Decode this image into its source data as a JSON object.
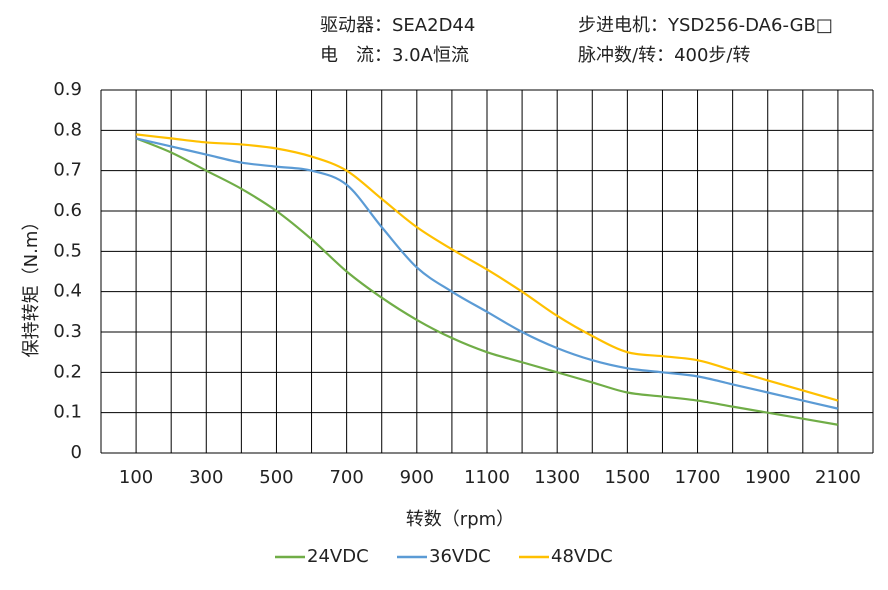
{
  "chart_data": {
    "type": "line",
    "header": [
      "驱动器：SEA2D44",
      "步进电机：YSD256-DA6-GB□",
      "电　流：3.0A恒流",
      "脉冲数/转：400步/转"
    ],
    "xlabel": "转数（rpm）",
    "ylabel": "保持转矩（N.m）",
    "x": [
      100,
      200,
      300,
      400,
      500,
      600,
      700,
      800,
      900,
      1000,
      1100,
      1200,
      1300,
      1400,
      1500,
      1600,
      1700,
      1800,
      1900,
      2000,
      2100
    ],
    "series": [
      {
        "name": "24VDC",
        "color": "#70ad47",
        "values": [
          0.78,
          0.745,
          0.7,
          0.655,
          0.6,
          0.53,
          0.45,
          0.385,
          0.33,
          0.285,
          0.25,
          0.225,
          0.2,
          0.175,
          0.15,
          0.14,
          0.13,
          0.115,
          0.1,
          0.085,
          0.07
        ]
      },
      {
        "name": "36VDC",
        "color": "#5b9bd5",
        "values": [
          0.78,
          0.76,
          0.74,
          0.72,
          0.71,
          0.7,
          0.665,
          0.56,
          0.46,
          0.4,
          0.35,
          0.3,
          0.26,
          0.23,
          0.21,
          0.2,
          0.19,
          0.17,
          0.15,
          0.13,
          0.11
        ]
      },
      {
        "name": "48VDC",
        "color": "#ffc000",
        "values": [
          0.79,
          0.78,
          0.77,
          0.765,
          0.755,
          0.735,
          0.7,
          0.63,
          0.56,
          0.505,
          0.455,
          0.4,
          0.34,
          0.29,
          0.25,
          0.24,
          0.23,
          0.205,
          0.18,
          0.155,
          0.13
        ]
      }
    ],
    "xlim": [
      0,
      2200
    ],
    "xticks": [
      100,
      300,
      500,
      700,
      900,
      1100,
      1300,
      1500,
      1700,
      1900,
      2100
    ],
    "x_gridlines": [
      0,
      100,
      200,
      300,
      400,
      500,
      600,
      700,
      800,
      900,
      1000,
      1100,
      1200,
      1300,
      1400,
      1500,
      1600,
      1700,
      1800,
      1900,
      2000,
      2100,
      2200
    ],
    "ylim": [
      0,
      0.9
    ],
    "yticks": [
      0,
      0.1,
      0.2,
      0.3,
      0.4,
      0.5,
      0.6,
      0.7,
      0.8,
      0.9
    ],
    "grid": true,
    "legend": "bottom"
  }
}
